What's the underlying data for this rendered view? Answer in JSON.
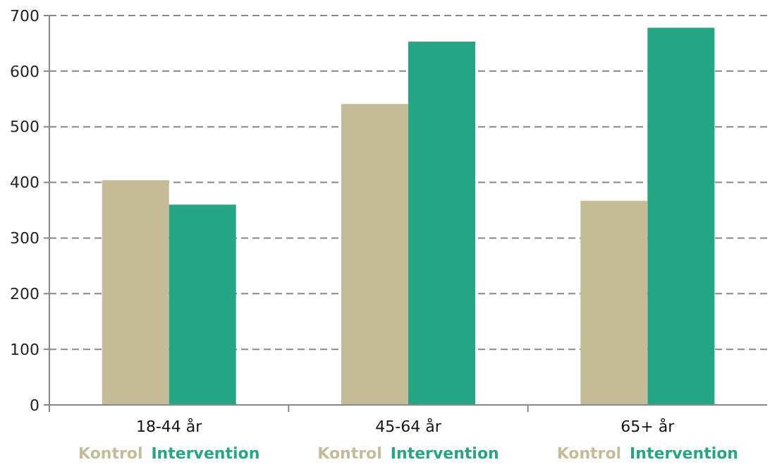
{
  "chart_data": {
    "type": "bar",
    "categories": [
      "18-44 år",
      "45-64 år",
      "65+ år"
    ],
    "series": [
      {
        "name": "Kontrol",
        "color": "#c4bc96",
        "values": [
          404,
          541,
          367
        ]
      },
      {
        "name": "Intervention",
        "color": "#24a584",
        "values": [
          360,
          653,
          678
        ]
      }
    ],
    "ylim": [
      0,
      700
    ],
    "yticks": [
      0,
      100,
      200,
      300,
      400,
      500,
      600,
      700
    ],
    "grid": "y",
    "legend": "bottom"
  }
}
